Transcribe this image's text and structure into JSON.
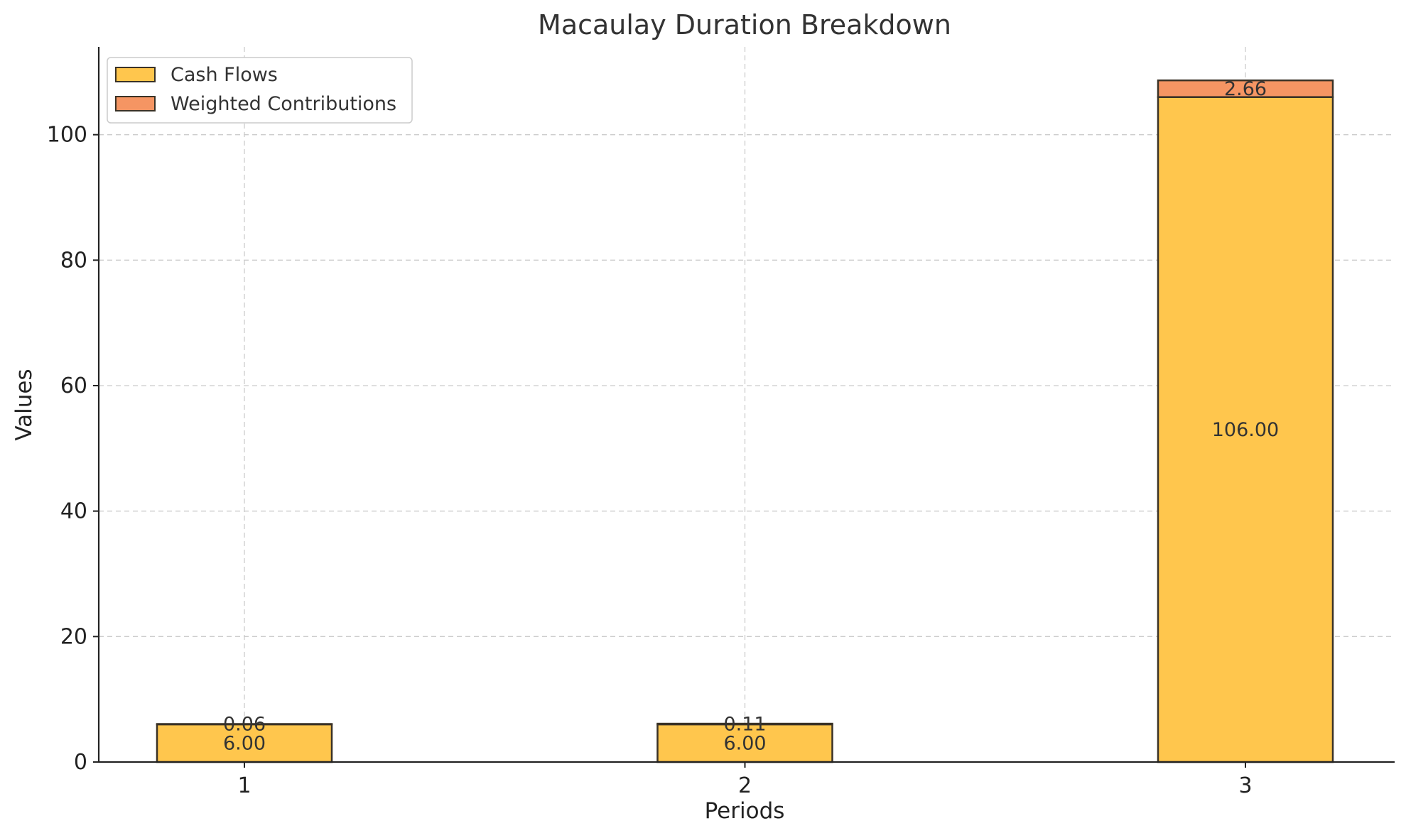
{
  "chart_data": {
    "type": "bar",
    "stacked": true,
    "title": "Macaulay Duration Breakdown",
    "xlabel": "Periods",
    "ylabel": "Values",
    "categories": [
      "1",
      "2",
      "3"
    ],
    "series": [
      {
        "name": "Cash Flows",
        "values": [
          6.0,
          6.0,
          106.0
        ],
        "labels": [
          "6.00",
          "6.00",
          "106.00"
        ],
        "color": "#ffc64d"
      },
      {
        "name": "Weighted Contributions",
        "values": [
          0.06,
          0.11,
          2.66
        ],
        "labels": [
          "0.06",
          "0.11",
          "2.66"
        ],
        "color": "#f59563"
      }
    ],
    "ylim": [
      0,
      114
    ],
    "yticks": [
      0,
      20,
      40,
      60,
      80,
      100
    ],
    "grid": true,
    "legend_position": "top-left"
  }
}
